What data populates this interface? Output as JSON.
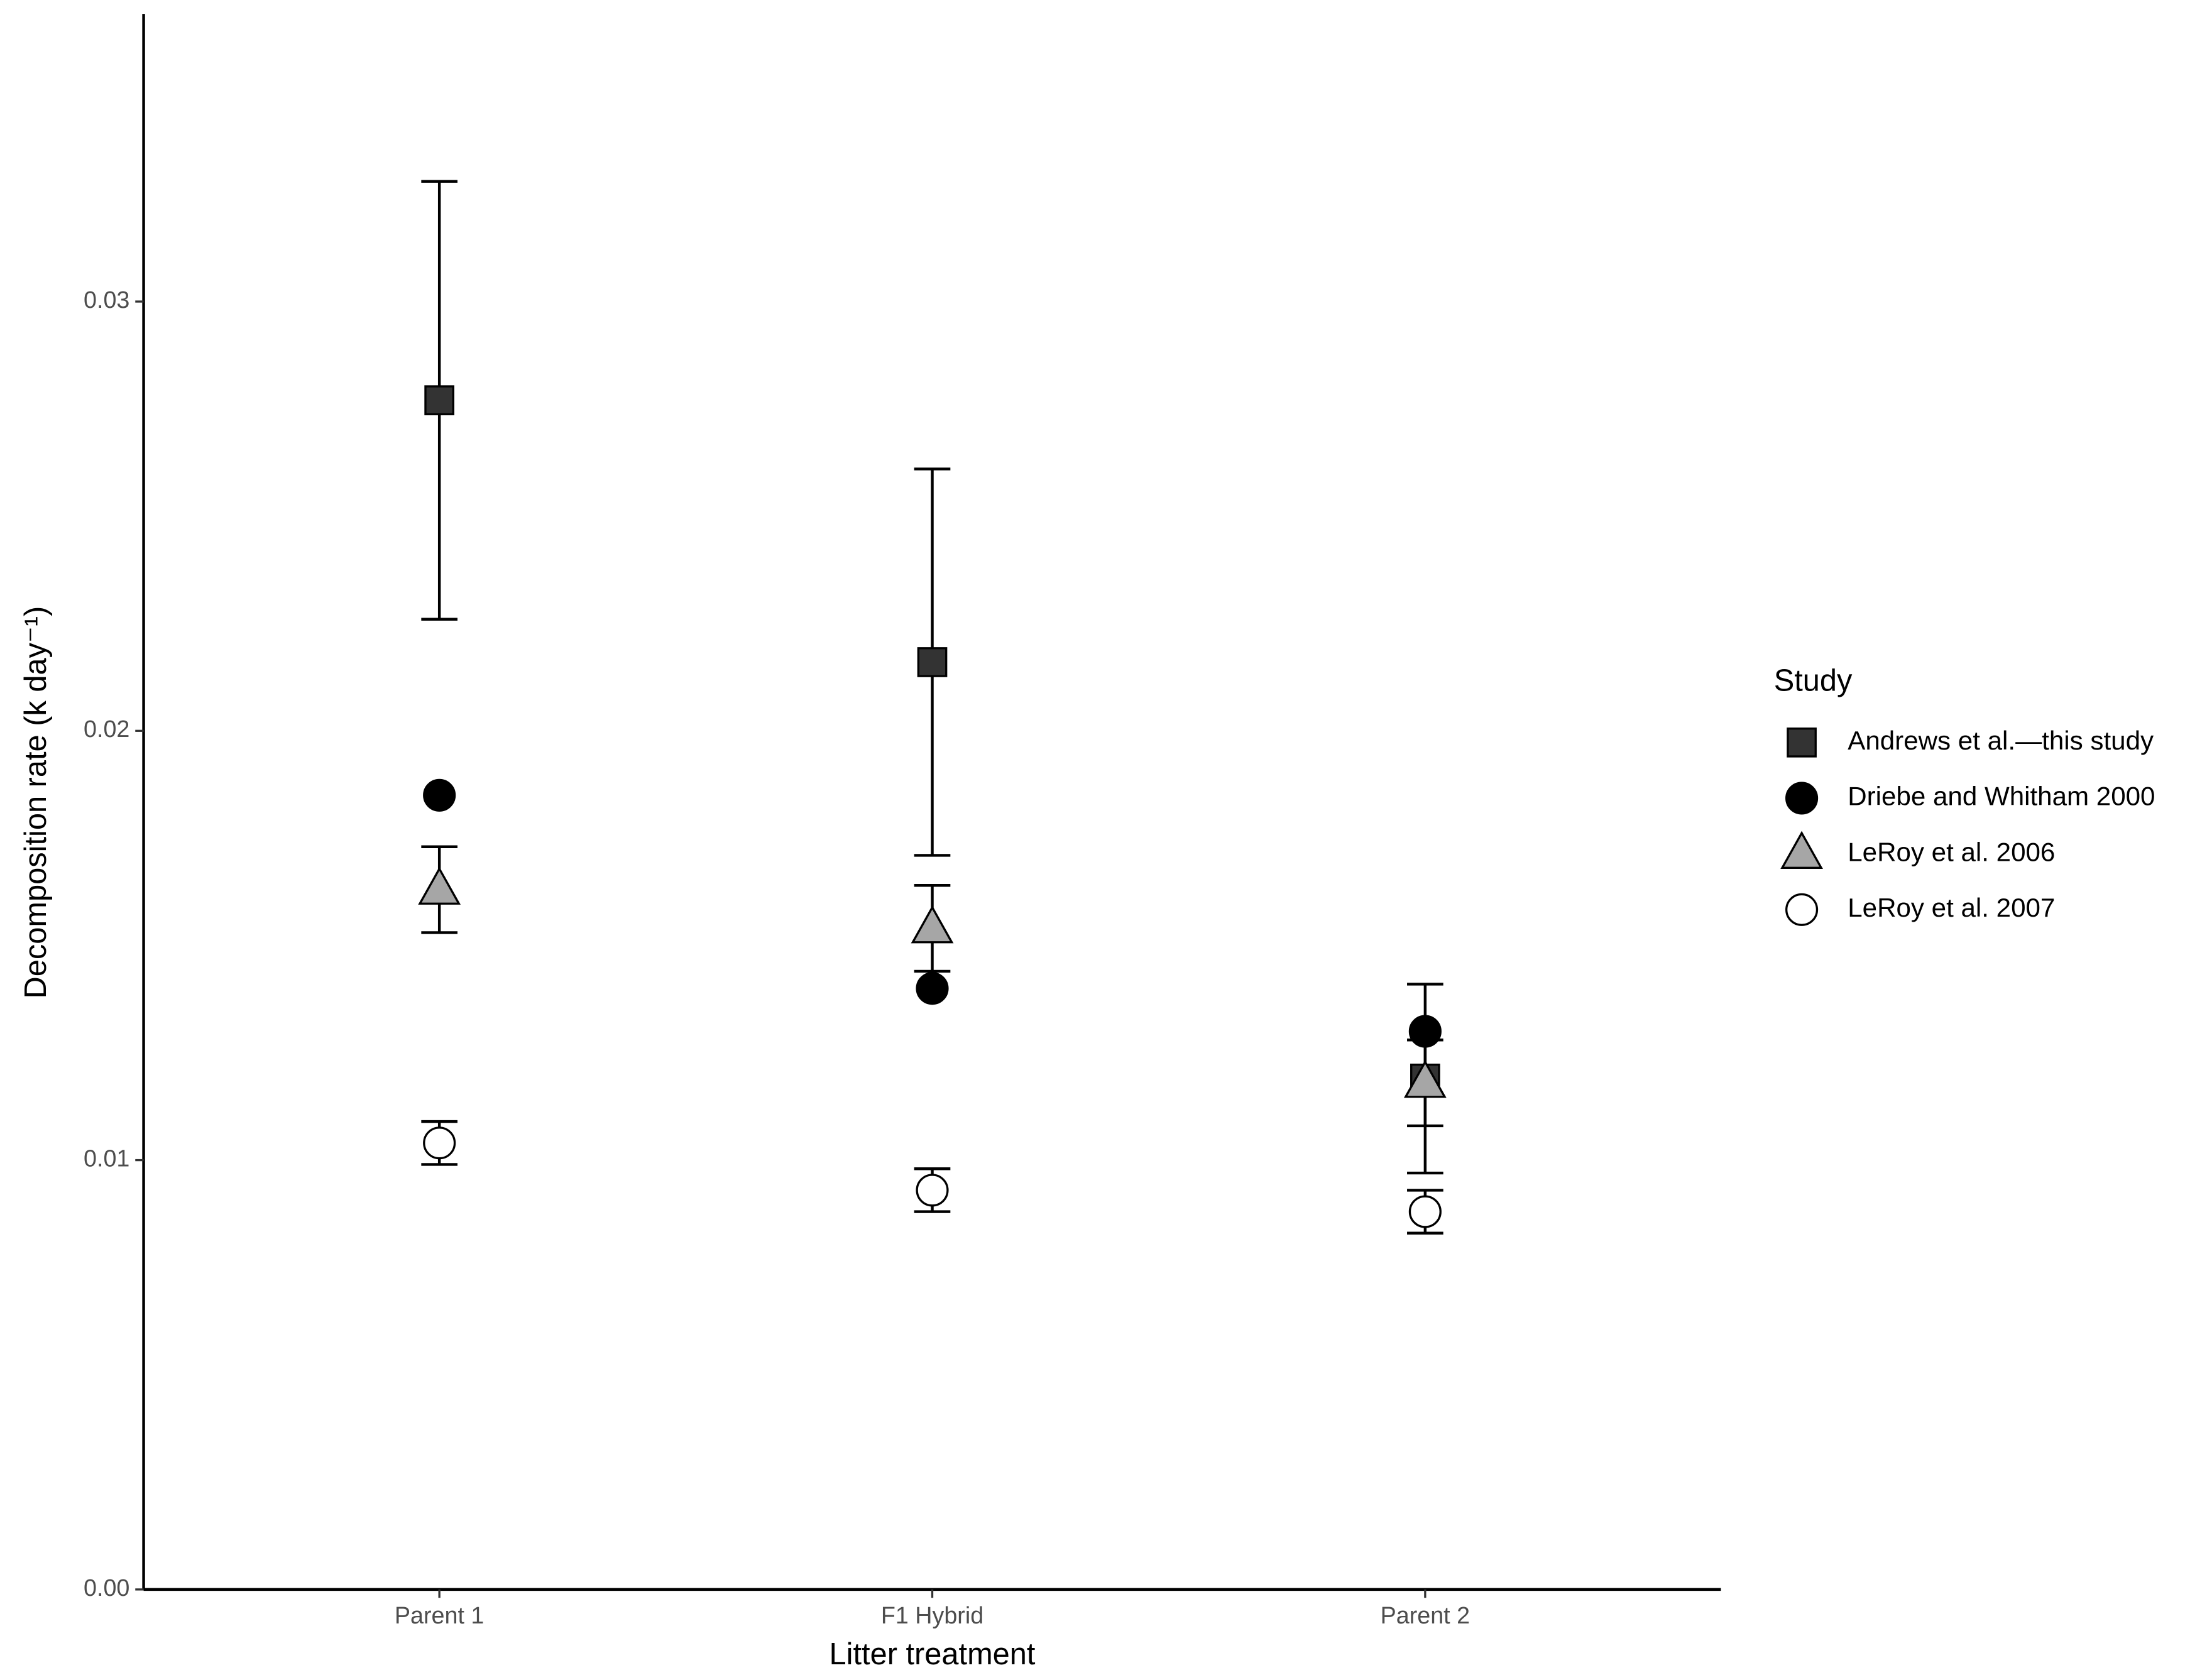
{
  "chart_data": {
    "type": "errorpoint",
    "xlabel": "Litter treatment",
    "ylabel": "Decomposition rate (k day⁻¹)",
    "categories": [
      "Parent 1",
      "F1 Hybrid",
      "Parent 2"
    ],
    "ylim": [
      0,
      0.0367
    ],
    "yticks": [
      {
        "value": 0,
        "label": "0.00"
      },
      0.01,
      0.02,
      0.03
    ],
    "legend_title": "Study",
    "legend_position": "right",
    "grid": false,
    "series": [
      {
        "name": "Andrews et al.—this study",
        "color": "#333333",
        "marker": "square",
        "values": [
          0.0277,
          0.0216,
          0.0119
        ],
        "errors": [
          0.0051,
          0.0045,
          0.0022
        ]
      },
      {
        "name": "Driebe and Whitham 2000",
        "color": "#000000",
        "marker": "circle",
        "values": [
          0.0185,
          0.014,
          0.013
        ],
        "errors": [
          null,
          null,
          null
        ]
      },
      {
        "name": "LeRoy et al. 2006",
        "color": "#a6a6a6",
        "marker": "triangle",
        "values": [
          0.0163,
          0.0154,
          0.0118
        ],
        "errors": [
          0.001,
          0.001,
          0.001
        ]
      },
      {
        "name": "LeRoy et al. 2007",
        "color": "#ffffff",
        "marker": "circle",
        "values": [
          0.0104,
          0.0093,
          0.0088
        ],
        "errors": [
          0.0005,
          0.0005,
          0.0005
        ]
      }
    ]
  }
}
